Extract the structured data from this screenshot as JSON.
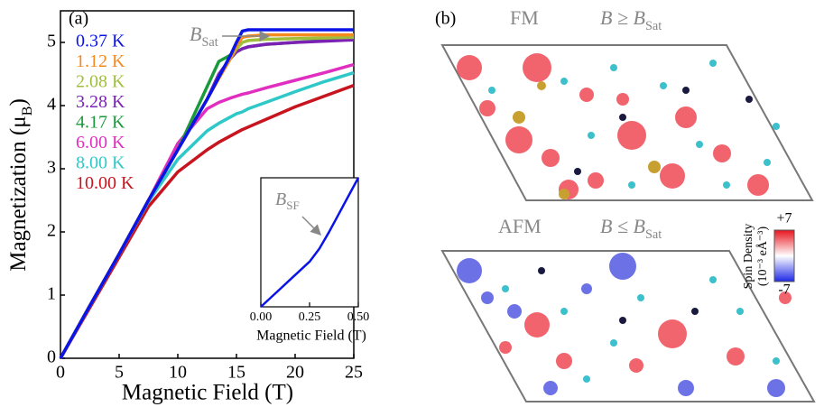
{
  "chart_data": [
    {
      "type": "line",
      "panel_label": "(a)",
      "xlabel": "Magnetic Field (T)",
      "ylabel": "Magnetization (μ",
      "ylabel_subscript": "B",
      "ylabel_suffix": ")",
      "annotation": "B",
      "annotation_subscript": "Sat",
      "xlim": [
        0,
        25
      ],
      "ylim": [
        0,
        5.5
      ],
      "xticks": [
        0,
        5,
        10,
        15,
        20,
        25
      ],
      "yticks": [
        0,
        1,
        2,
        3,
        4,
        5
      ],
      "x": [
        0,
        2.5,
        5,
        7.5,
        10,
        12.5,
        13.5,
        14.5,
        15,
        15.5,
        16,
        17.5,
        20,
        22.5,
        25
      ],
      "series": [
        {
          "name": "0.37 K",
          "color": "#0a14e6",
          "values": [
            0,
            0.83,
            1.65,
            2.5,
            3.3,
            4.1,
            4.45,
            4.8,
            5.0,
            5.18,
            5.2,
            5.2,
            5.2,
            5.2,
            5.2
          ]
        },
        {
          "name": "1.12 K",
          "color": "#f58a1e",
          "values": [
            0,
            0.83,
            1.65,
            2.5,
            3.3,
            4.1,
            4.43,
            4.75,
            4.95,
            5.08,
            5.1,
            5.12,
            5.12,
            5.12,
            5.12
          ]
        },
        {
          "name": "2.08 K",
          "color": "#9fbf3a",
          "values": [
            0,
            0.83,
            1.65,
            2.5,
            3.3,
            4.1,
            4.45,
            4.75,
            4.9,
            5.0,
            5.03,
            5.05,
            5.06,
            5.07,
            5.08
          ]
        },
        {
          "name": "3.28 K",
          "color": "#7b22b4",
          "values": [
            0,
            0.83,
            1.65,
            2.5,
            3.3,
            4.1,
            4.5,
            4.75,
            4.85,
            4.9,
            4.93,
            4.97,
            5.0,
            5.02,
            5.04
          ]
        },
        {
          "name": "4.17 K",
          "color": "#1a9a3a",
          "values": [
            0,
            0.83,
            1.65,
            2.5,
            3.3,
            4.3,
            4.7,
            4.8,
            4.85,
            4.9,
            4.93,
            4.97,
            5.0,
            5.03,
            5.05
          ]
        },
        {
          "name": "6.00 K",
          "color": "#e02fc0",
          "values": [
            0,
            0.83,
            1.65,
            2.5,
            3.4,
            3.95,
            4.05,
            4.12,
            4.15,
            4.18,
            4.2,
            4.28,
            4.4,
            4.52,
            4.65
          ]
        },
        {
          "name": "8.00 K",
          "color": "#2ec8c8",
          "values": [
            0,
            0.83,
            1.65,
            2.48,
            3.15,
            3.6,
            3.72,
            3.82,
            3.87,
            3.9,
            3.95,
            4.05,
            4.22,
            4.38,
            4.52
          ]
        },
        {
          "name": "10.00 K",
          "color": "#c8141e",
          "values": [
            0,
            0.8,
            1.6,
            2.4,
            2.95,
            3.3,
            3.42,
            3.52,
            3.57,
            3.62,
            3.66,
            3.78,
            3.98,
            4.15,
            4.32
          ]
        }
      ]
    },
    {
      "type": "line",
      "xlabel": "Magnetic Field (T)",
      "annotation": "B",
      "annotation_subscript": "SF",
      "xlim": [
        0,
        0.5
      ],
      "ylim": [
        0,
        1
      ],
      "xticks": [
        {
          "value": 0,
          "label": "0.00"
        },
        {
          "value": 0.25,
          "label": "0.25"
        },
        {
          "value": 0.5,
          "label": "0.50"
        }
      ],
      "x": [
        0,
        0.05,
        0.1,
        0.15,
        0.2,
        0.25,
        0.3,
        0.35,
        0.4,
        0.45,
        0.5
      ],
      "series": [
        {
          "color": "#0a14e6",
          "values": [
            0,
            0.07,
            0.14,
            0.21,
            0.28,
            0.35,
            0.45,
            0.58,
            0.72,
            0.86,
            1.0
          ]
        }
      ]
    }
  ],
  "panel_b": {
    "label": "(b)",
    "top_title": "FM",
    "top_condition": "B ≥ B",
    "top_subscript": "Sat",
    "bottom_title": "AFM",
    "bottom_condition": "B ≤ B",
    "bottom_subscript": "Sat",
    "colorbar": {
      "title": "Spin Density",
      "units": "(10⁻³ eÅ⁻³)",
      "lim": [
        -7,
        7
      ],
      "ticks": [
        {
          "value": 7,
          "label": "+7"
        },
        {
          "value": -7,
          "label": "-7"
        }
      ]
    }
  }
}
